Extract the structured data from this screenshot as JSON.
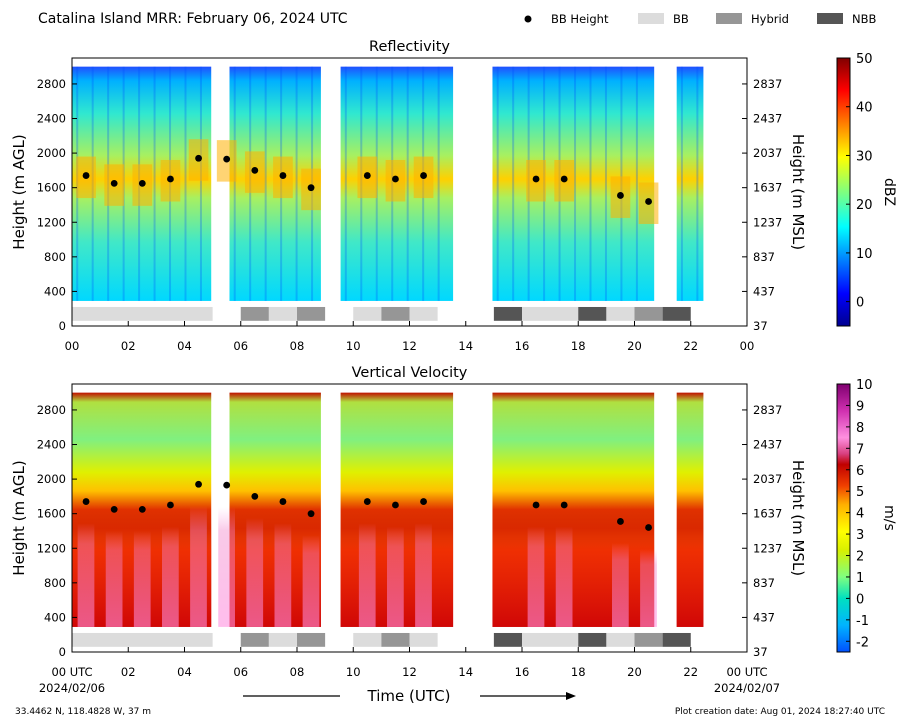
{
  "header": {
    "title": "Catalina Island MRR:  February 06, 2024 UTC",
    "legend": [
      {
        "label": "BB Height",
        "kind": "dot",
        "color": "#000000"
      },
      {
        "label": "BB",
        "kind": "swatch",
        "color": "#dcdcdc"
      },
      {
        "label": "Hybrid",
        "kind": "swatch",
        "color": "#969696"
      },
      {
        "label": "NBB",
        "kind": "swatch",
        "color": "#555555"
      }
    ]
  },
  "footer": {
    "location": "33.4462 N, 118.4828 W, 37 m",
    "created": "Plot creation date: Aug 01, 2024 18:27:40 UTC",
    "start_date": "2024/02/06",
    "end_date": "2024/02/07",
    "xlabel": "Time (UTC)"
  },
  "chart_data": [
    {
      "type": "heatmap",
      "title": "Reflectivity",
      "ylabel": "Height (m AGL)",
      "ylabel_right": "Height (m MSL)",
      "xlim": [
        0,
        24
      ],
      "ylim": [
        0,
        3100
      ],
      "x_ticks": [
        "00",
        "02",
        "04",
        "06",
        "08",
        "10",
        "12",
        "14",
        "16",
        "18",
        "20",
        "22",
        "00"
      ],
      "y_ticks": [
        0,
        400,
        800,
        1200,
        1600,
        2000,
        2400,
        2800
      ],
      "y_ticks_right": [
        37,
        437,
        837,
        1237,
        1637,
        2037,
        2437,
        2837
      ],
      "colorbar": {
        "label": "dBZ",
        "min": -5,
        "max": 50,
        "ticks": [
          0,
          10,
          20,
          30,
          40,
          50
        ]
      },
      "data_top": 3000,
      "data_bottom": 290,
      "gaps": [
        [
          4.95,
          5.6
        ],
        [
          8.85,
          9.55
        ],
        [
          13.55,
          14.95
        ],
        [
          20.7,
          21.5
        ],
        [
          22.45,
          24
        ]
      ],
      "bb_height": [
        {
          "x": 0.5,
          "y": 1740
        },
        {
          "x": 1.5,
          "y": 1650
        },
        {
          "x": 2.5,
          "y": 1650
        },
        {
          "x": 3.5,
          "y": 1700
        },
        {
          "x": 4.5,
          "y": 1940
        },
        {
          "x": 5.5,
          "y": 1930
        },
        {
          "x": 6.5,
          "y": 1800
        },
        {
          "x": 7.5,
          "y": 1740
        },
        {
          "x": 8.5,
          "y": 1600
        },
        {
          "x": 10.5,
          "y": 1740
        },
        {
          "x": 11.5,
          "y": 1700
        },
        {
          "x": 12.5,
          "y": 1740
        },
        {
          "x": 16.5,
          "y": 1700
        },
        {
          "x": 17.5,
          "y": 1700
        },
        {
          "x": 19.5,
          "y": 1510
        },
        {
          "x": 20.5,
          "y": 1440
        }
      ],
      "bb_type": [
        {
          "start": 0,
          "end": 5,
          "type": "BB"
        },
        {
          "start": 6,
          "end": 7,
          "type": "Hybrid"
        },
        {
          "start": 7,
          "end": 8,
          "type": "BB"
        },
        {
          "start": 8,
          "end": 9,
          "type": "Hybrid"
        },
        {
          "start": 10,
          "end": 11,
          "type": "BB"
        },
        {
          "start": 11,
          "end": 12,
          "type": "Hybrid"
        },
        {
          "start": 12,
          "end": 13,
          "type": "BB"
        },
        {
          "start": 15,
          "end": 16,
          "type": "NBB"
        },
        {
          "start": 16,
          "end": 18,
          "type": "BB"
        },
        {
          "start": 18,
          "end": 19,
          "type": "NBB"
        },
        {
          "start": 19,
          "end": 20,
          "type": "BB"
        },
        {
          "start": 20,
          "end": 21,
          "type": "Hybrid"
        },
        {
          "start": 21,
          "end": 22,
          "type": "NBB"
        }
      ]
    },
    {
      "type": "heatmap",
      "title": "Vertical Velocity",
      "ylabel": "Height (m AGL)",
      "ylabel_right": "Height (m MSL)",
      "xlim": [
        0,
        24
      ],
      "ylim": [
        0,
        3100
      ],
      "x_ticks": [
        "00 UTC",
        "02",
        "04",
        "06",
        "08",
        "10",
        "12",
        "14",
        "16",
        "18",
        "20",
        "22",
        "00 UTC"
      ],
      "y_ticks": [
        0,
        400,
        800,
        1200,
        1600,
        2000,
        2400,
        2800
      ],
      "y_ticks_right": [
        37,
        437,
        837,
        1237,
        1637,
        2037,
        2437,
        2837
      ],
      "colorbar": {
        "label": "m/s",
        "min": -2.5,
        "max": 10,
        "ticks": [
          -2,
          -1,
          0,
          1,
          2,
          3,
          4,
          5,
          6,
          7,
          8,
          9,
          10
        ]
      },
      "data_top": 3000,
      "data_bottom": 290,
      "gaps": [
        [
          4.95,
          5.6
        ],
        [
          8.85,
          9.55
        ],
        [
          13.55,
          14.95
        ],
        [
          20.7,
          21.5
        ],
        [
          22.45,
          24
        ]
      ],
      "bb_height": [
        {
          "x": 0.5,
          "y": 1740
        },
        {
          "x": 1.5,
          "y": 1650
        },
        {
          "x": 2.5,
          "y": 1650
        },
        {
          "x": 3.5,
          "y": 1700
        },
        {
          "x": 4.5,
          "y": 1940
        },
        {
          "x": 5.5,
          "y": 1930
        },
        {
          "x": 6.5,
          "y": 1800
        },
        {
          "x": 7.5,
          "y": 1740
        },
        {
          "x": 8.5,
          "y": 1600
        },
        {
          "x": 10.5,
          "y": 1740
        },
        {
          "x": 11.5,
          "y": 1700
        },
        {
          "x": 12.5,
          "y": 1740
        },
        {
          "x": 16.5,
          "y": 1700
        },
        {
          "x": 17.5,
          "y": 1700
        },
        {
          "x": 19.5,
          "y": 1510
        },
        {
          "x": 20.5,
          "y": 1440
        }
      ],
      "bb_type": [
        {
          "start": 0,
          "end": 5,
          "type": "BB"
        },
        {
          "start": 6,
          "end": 7,
          "type": "Hybrid"
        },
        {
          "start": 7,
          "end": 8,
          "type": "BB"
        },
        {
          "start": 8,
          "end": 9,
          "type": "Hybrid"
        },
        {
          "start": 10,
          "end": 11,
          "type": "BB"
        },
        {
          "start": 11,
          "end": 12,
          "type": "Hybrid"
        },
        {
          "start": 12,
          "end": 13,
          "type": "BB"
        },
        {
          "start": 15,
          "end": 16,
          "type": "NBB"
        },
        {
          "start": 16,
          "end": 18,
          "type": "BB"
        },
        {
          "start": 18,
          "end": 19,
          "type": "NBB"
        },
        {
          "start": 19,
          "end": 20,
          "type": "BB"
        },
        {
          "start": 20,
          "end": 21,
          "type": "Hybrid"
        },
        {
          "start": 21,
          "end": 22,
          "type": "NBB"
        }
      ]
    }
  ]
}
